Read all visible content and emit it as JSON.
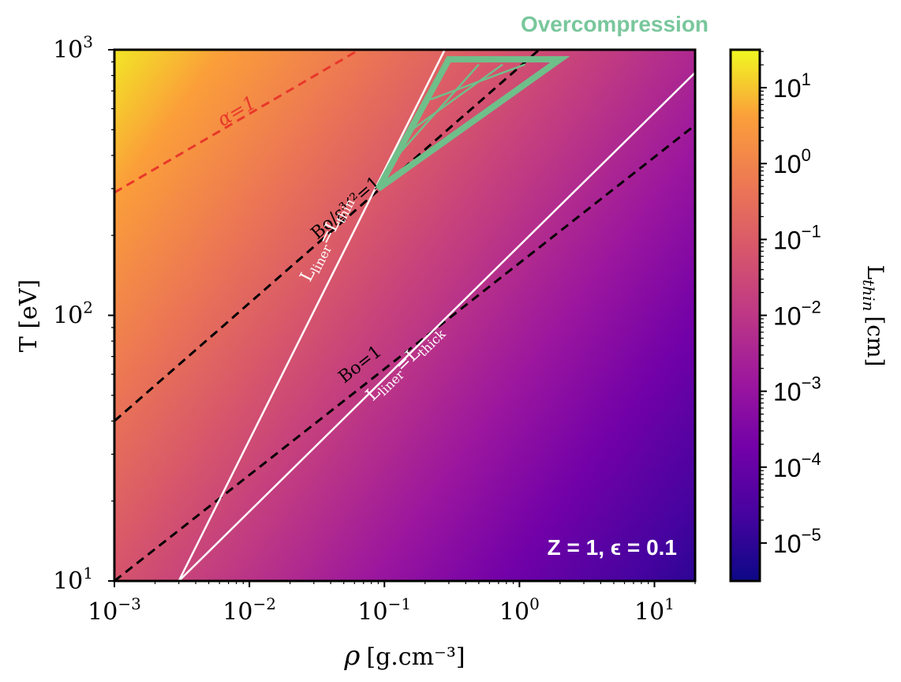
{
  "chart_data": {
    "type": "heatmap",
    "title": "",
    "xlabel": "ρ",
    "xlabel_unit": "[g.cm⁻³]",
    "ylabel": "T [eV]",
    "x_scale": "log",
    "y_scale": "log",
    "xlim": [
      0.001,
      20
    ],
    "ylim": [
      10,
      1000
    ],
    "x_tick_values": [
      0.001,
      0.01,
      0.1,
      1,
      10
    ],
    "x_ticks": [
      {
        "base": "10",
        "exp": "−3"
      },
      {
        "base": "10",
        "exp": "−2"
      },
      {
        "base": "10",
        "exp": "−1"
      },
      {
        "base": "10",
        "exp": "0"
      },
      {
        "base": "10",
        "exp": "1"
      }
    ],
    "y_tick_values": [
      10,
      100,
      1000
    ],
    "y_ticks": [
      {
        "base": "10",
        "exp": "1"
      },
      {
        "base": "10",
        "exp": "2"
      },
      {
        "base": "10",
        "exp": "3"
      }
    ],
    "heatmap_field": {
      "quantity": "L_thin",
      "description": "log10(L_thin) increases with T and decreases with ρ",
      "corner_values_log10": {
        "rho_min_T_max": 1.3,
        "rho_max_T_max": -2.4,
        "rho_min_T_min": -1.2,
        "rho_max_T_min": -5.0
      }
    },
    "colorbar": {
      "label_main": "L",
      "label_sub": "thin",
      "label_unit": "[cm]",
      "scale": "log",
      "range_log10": [
        -5.5,
        1.5
      ],
      "colormap": "plasma",
      "tick_values_log10": [
        1,
        0,
        -1,
        -2,
        -3,
        -4,
        -5
      ],
      "ticks": [
        {
          "base": "10",
          "exp": "1"
        },
        {
          "base": "10",
          "exp": "0"
        },
        {
          "base": "10",
          "exp": "−1"
        },
        {
          "base": "10",
          "exp": "−2"
        },
        {
          "base": "10",
          "exp": "−3"
        },
        {
          "base": "10",
          "exp": "−4"
        },
        {
          "base": "10",
          "exp": "−5"
        }
      ]
    },
    "lines": [
      {
        "name": "alpha-eq-1",
        "style": "dashed",
        "color": "#e8382a",
        "points": [
          [
            0.001,
            290
          ],
          [
            0.065,
            1000
          ]
        ],
        "label": "α=1",
        "label_at": [
          0.0085,
          560
        ]
      },
      {
        "name": "bo-eps-eq-1",
        "style": "dashed",
        "color": "#000000",
        "points": [
          [
            0.001,
            40
          ],
          [
            1.4,
            1000
          ]
        ],
        "label": "Bo/ε³ᐟ²=1",
        "label_at": [
          0.055,
          245
        ]
      },
      {
        "name": "bo-eq-1",
        "style": "dashed",
        "color": "#000000",
        "points": [
          [
            0.001,
            10
          ],
          [
            20,
            520
          ]
        ],
        "label": "Bo=1",
        "label_at": [
          0.07,
          63
        ]
      },
      {
        "name": "lliner-eq-lthin",
        "style": "solid",
        "color": "#ffffff",
        "points": [
          [
            0.003,
            10
          ],
          [
            0.28,
            1000
          ]
        ],
        "label_main": "L",
        "label_sub1": "liner",
        "label_mid": "=L",
        "label_sub2": "thin",
        "label_at": [
          0.04,
          190
        ]
      },
      {
        "name": "lliner-eq-lthick",
        "style": "solid",
        "color": "#ffffff",
        "points": [
          [
            0.003,
            10
          ],
          [
            20,
            820
          ]
        ],
        "label_main": "L",
        "label_sub1": "liner",
        "label_mid": "=L",
        "label_sub2": "thick",
        "label_at": [
          0.15,
          64
        ]
      }
    ],
    "overcompression_region": {
      "label": "Overcompression",
      "color": "#6fbf8a",
      "vertices": [
        [
          0.09,
          300
        ],
        [
          0.3,
          920
        ],
        [
          2.0,
          920
        ]
      ],
      "hatches": [
        [
          [
            0.12,
            390
          ],
          [
            0.5,
            880
          ]
        ],
        [
          [
            0.16,
            500
          ],
          [
            0.75,
            880
          ]
        ],
        [
          [
            0.22,
            650
          ],
          [
            1.1,
            880
          ]
        ]
      ]
    },
    "annotation": "Z = 1, ϵ = 0.1"
  }
}
